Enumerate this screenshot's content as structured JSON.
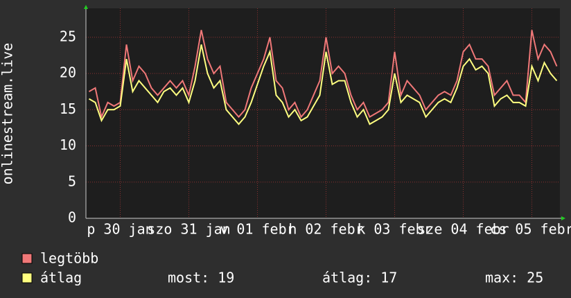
{
  "chart_data": {
    "type": "line",
    "y_label": "onlinestream.live",
    "categories": [
      null,
      null,
      null,
      null,
      null,
      "p 30 jan",
      null,
      null,
      null,
      null,
      null,
      null,
      null,
      null,
      null,
      null,
      "szo 31 jan",
      null,
      null,
      null,
      null,
      null,
      null,
      null,
      null,
      null,
      null,
      "v 01 febr",
      null,
      null,
      null,
      null,
      null,
      null,
      null,
      null,
      null,
      null,
      "h 02 febr",
      null,
      null,
      null,
      null,
      null,
      null,
      null,
      null,
      null,
      null,
      "k 03 febr",
      null,
      null,
      null,
      null,
      null,
      null,
      null,
      null,
      null,
      null,
      "sze 04 febr",
      null,
      null,
      null,
      null,
      null,
      null,
      null,
      null,
      null,
      null,
      "cs 05 febr",
      null,
      null,
      null,
      null
    ],
    "series": [
      {
        "name": "legtöbb",
        "color": "#f07878",
        "values": [
          17.5,
          18,
          14,
          16,
          15.5,
          16,
          24,
          19,
          21,
          20,
          18,
          17,
          18,
          19,
          18,
          19,
          17,
          21,
          26,
          22,
          20,
          21,
          16,
          15,
          14,
          15,
          18,
          20,
          22,
          25,
          19,
          18,
          15,
          16,
          14,
          15,
          17,
          19,
          25,
          20,
          21,
          20,
          17,
          15,
          16,
          14,
          14.5,
          15,
          16,
          23,
          17,
          19,
          18,
          17,
          15,
          16,
          17,
          17.5,
          17,
          19,
          23,
          24,
          22,
          22,
          21,
          17,
          18,
          19,
          17,
          17,
          16,
          26,
          22,
          24,
          23,
          21
        ]
      },
      {
        "name": "átlag",
        "color": "#ffff80",
        "values": [
          16.5,
          16,
          13.5,
          15,
          15,
          15.5,
          22,
          17.5,
          19,
          18,
          17,
          16,
          17.5,
          18,
          17,
          18,
          16,
          19,
          24,
          20,
          18,
          19,
          15,
          14,
          13,
          14,
          16,
          18.5,
          21,
          23,
          17,
          16,
          14,
          15,
          13.5,
          14,
          15.5,
          17,
          23,
          18.5,
          19,
          19,
          16,
          14,
          15,
          13,
          13.5,
          14,
          15,
          20,
          16,
          17,
          16.5,
          16,
          14,
          15,
          16,
          16.5,
          16,
          18,
          21,
          22,
          20.5,
          21,
          20,
          15.5,
          16.5,
          17,
          16,
          16,
          15.5,
          21,
          19,
          21.5,
          20,
          19
        ]
      }
    ],
    "ylim": [
      0,
      29
    ],
    "yticks": [
      0,
      5,
      10,
      15,
      20,
      25
    ],
    "grid": true,
    "stats": [
      {
        "label": "most:",
        "value": 19
      },
      {
        "label": "átlag:",
        "value": 17
      },
      {
        "label": "max:",
        "value": 25
      }
    ]
  }
}
